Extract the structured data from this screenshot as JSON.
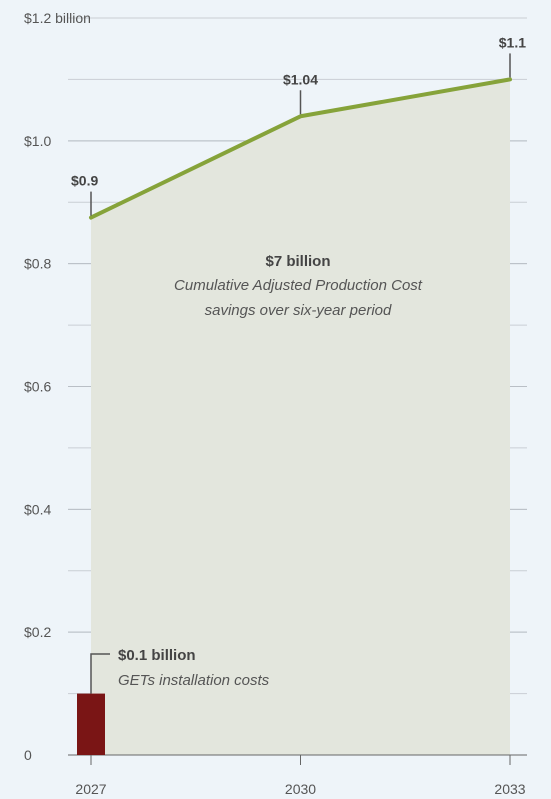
{
  "chart_data": {
    "type": "area",
    "x_ticks": [
      "2027",
      "2030",
      "2033"
    ],
    "y_ticks": [
      {
        "value": 0,
        "label": "0"
      },
      {
        "value": 0.2,
        "label": "$0.2"
      },
      {
        "value": 0.4,
        "label": "$0.4"
      },
      {
        "value": 0.6,
        "label": "$0.6"
      },
      {
        "value": 0.8,
        "label": "$0.8"
      },
      {
        "value": 1.0,
        "label": "$1.0"
      },
      {
        "value": 1.2,
        "label": "$1.2 billion"
      }
    ],
    "ylim": [
      0,
      1.2
    ],
    "xlim": [
      2027,
      2033
    ],
    "minor_grid_step": 0.1,
    "savings_series": {
      "points": [
        {
          "x": 2027,
          "y": 0.875
        },
        {
          "x": 2030,
          "y": 1.04
        },
        {
          "x": 2033,
          "y": 1.1
        }
      ],
      "line_color": "#86a33a",
      "fill_color": "#e3e6dd"
    },
    "point_labels": [
      {
        "x": 2027,
        "y": 0.875,
        "text": "$0.9"
      },
      {
        "x": 2030,
        "y": 1.04,
        "text": "$1.04"
      },
      {
        "x": 2033,
        "y": 1.1,
        "text": "$1.1"
      }
    ],
    "cost_bar": {
      "x": 2027,
      "value": 0.1,
      "color": "#7a1515"
    },
    "annotations": {
      "savings_value": "$7 billion",
      "savings_desc_line1": "Cumulative Adjusted Production Cost",
      "savings_desc_line2": "savings over six-year period",
      "cost_value": "$0.1 billion",
      "cost_desc": "GETs installation costs"
    }
  }
}
